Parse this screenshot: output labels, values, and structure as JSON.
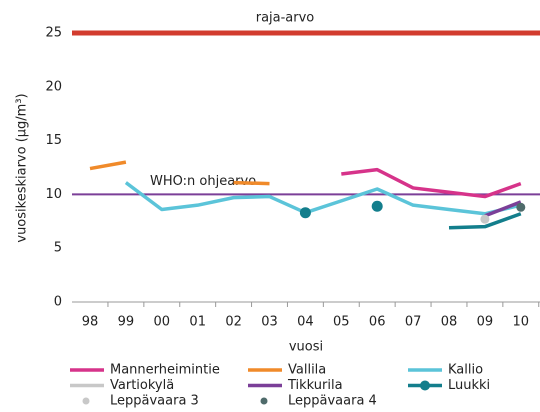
{
  "chart_data": {
    "type": "line",
    "y_label": "vuosikeskiarvo (µg/m³)",
    "x_label": "vuosi",
    "categories": [
      "98",
      "99",
      "00",
      "01",
      "02",
      "03",
      "04",
      "05",
      "06",
      "07",
      "08",
      "09",
      "10"
    ],
    "ylim": [
      0,
      25
    ],
    "yticks": [
      0,
      5,
      10,
      15,
      20,
      25
    ],
    "reference_lines": [
      {
        "value": 25,
        "label": "raja-arvo",
        "color": "#d23c2e"
      },
      {
        "value": 10,
        "label": "WHO:n ohjearvo",
        "color": "#7b3f98"
      }
    ],
    "series": [
      {
        "name": "Mannerheimintie",
        "color": "#d6338a",
        "style": "line",
        "values": [
          null,
          null,
          null,
          null,
          null,
          null,
          null,
          11.9,
          12.3,
          10.6,
          10.2,
          9.8,
          11.0
        ]
      },
      {
        "name": "Vallila",
        "color": "#f08a2a",
        "style": "line",
        "values": [
          12.4,
          13.0,
          null,
          null,
          11.1,
          11.0,
          null,
          null,
          null,
          null,
          null,
          null,
          null
        ]
      },
      {
        "name": "Kallio",
        "color": "#5bc4d9",
        "style": "line",
        "values": [
          null,
          11.1,
          8.6,
          9.0,
          9.7,
          9.8,
          8.3,
          9.4,
          10.5,
          9.0,
          8.6,
          8.2,
          9.0
        ]
      },
      {
        "name": "Vartiokylä",
        "color": "#c8c8c8",
        "style": "line",
        "values": [
          null,
          null,
          null,
          null,
          null,
          null,
          null,
          null,
          null,
          null,
          null,
          null,
          null
        ]
      },
      {
        "name": "Tikkurila",
        "color": "#7b3f98",
        "style": "line",
        "values": [
          null,
          null,
          null,
          null,
          null,
          null,
          null,
          null,
          null,
          null,
          null,
          8.0,
          9.3
        ]
      },
      {
        "name": "Luukki",
        "color": "#137e8c",
        "style": "line-marker",
        "values": [
          null,
          null,
          null,
          null,
          null,
          null,
          8.3,
          null,
          8.9,
          null,
          6.9,
          7.0,
          8.2
        ]
      },
      {
        "name": "Leppävaara 3",
        "color": "#c8c8c8",
        "style": "point",
        "values": [
          null,
          null,
          null,
          null,
          null,
          null,
          null,
          null,
          null,
          null,
          null,
          7.7,
          null
        ]
      },
      {
        "name": "Leppävaara 4",
        "color": "#4f6b6b",
        "style": "point",
        "values": [
          null,
          null,
          null,
          null,
          null,
          null,
          null,
          null,
          null,
          null,
          null,
          null,
          8.8
        ]
      }
    ]
  }
}
